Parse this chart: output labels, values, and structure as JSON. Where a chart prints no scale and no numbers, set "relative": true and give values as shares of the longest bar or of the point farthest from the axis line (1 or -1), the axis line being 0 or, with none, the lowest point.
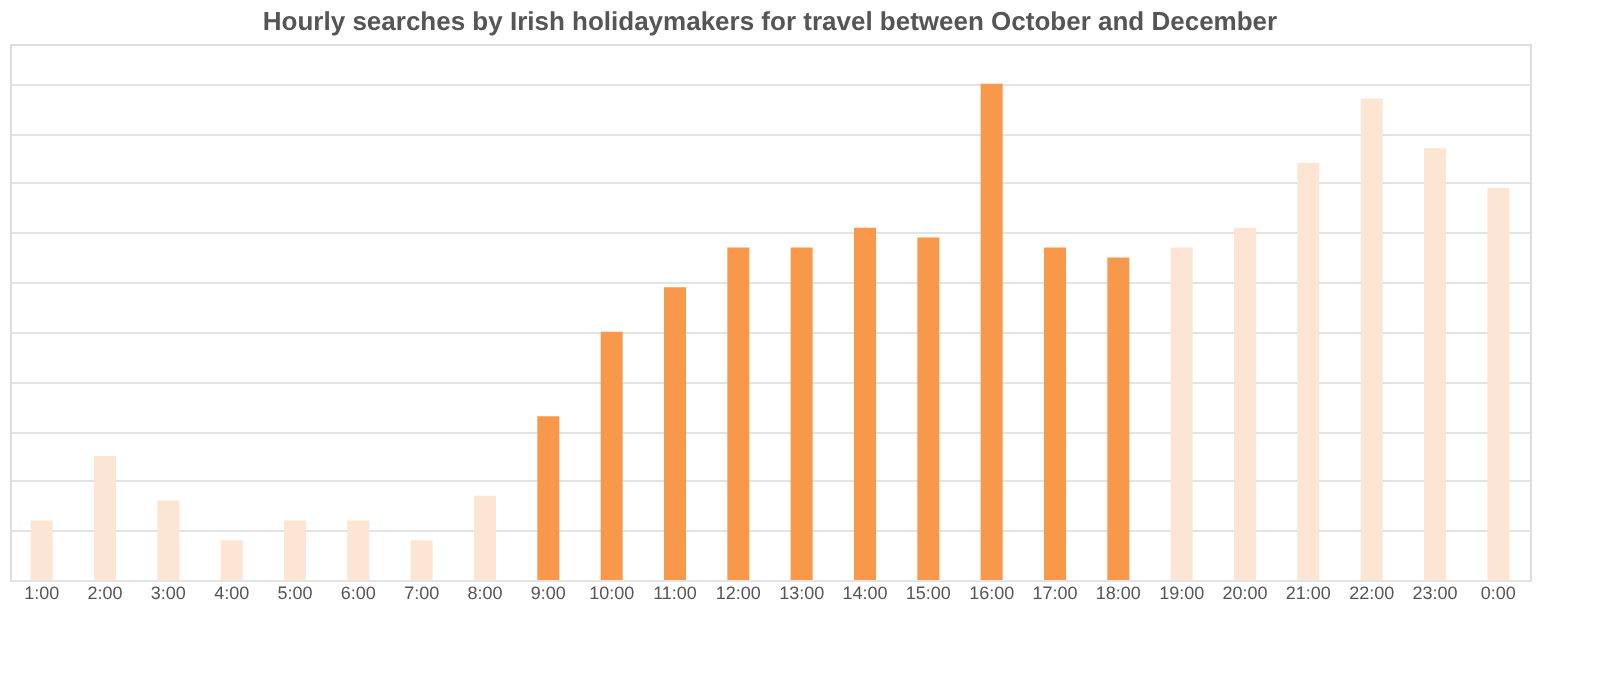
{
  "chart_data": {
    "type": "bar",
    "title": "Hourly searches by Irish holidaymakers for travel between October and December",
    "categories": [
      "1:00",
      "2:00",
      "3:00",
      "4:00",
      "5:00",
      "6:00",
      "7:00",
      "8:00",
      "9:00",
      "10:00",
      "11:00",
      "12:00",
      "13:00",
      "14:00",
      "15:00",
      "16:00",
      "17:00",
      "18:00",
      "19:00",
      "20:00",
      "21:00",
      "22:00",
      "23:00",
      "0:00"
    ],
    "values": [
      0.12,
      0.25,
      0.16,
      0.08,
      0.12,
      0.12,
      0.08,
      0.17,
      0.33,
      0.5,
      0.59,
      0.67,
      0.67,
      0.71,
      0.69,
      1,
      0.67,
      0.65,
      0.67,
      0.71,
      0.84,
      0.97,
      0.87,
      0.79
    ],
    "colors": [
      "#fde5d4",
      "#fde5d4",
      "#fde5d4",
      "#fde5d4",
      "#fde5d4",
      "#fde5d4",
      "#fde5d4",
      "#fde5d4",
      "#f7984a",
      "#f7984a",
      "#f7984a",
      "#f7984a",
      "#f7984a",
      "#f7984a",
      "#f7984a",
      "#f7984a",
      "#f7984a",
      "#f7984a",
      "#fde5d4",
      "#fde5d4",
      "#fde5d4",
      "#fde5d4",
      "#fde5d4",
      "#fde5d4"
    ],
    "relative": true,
    "grid": "y"
  }
}
